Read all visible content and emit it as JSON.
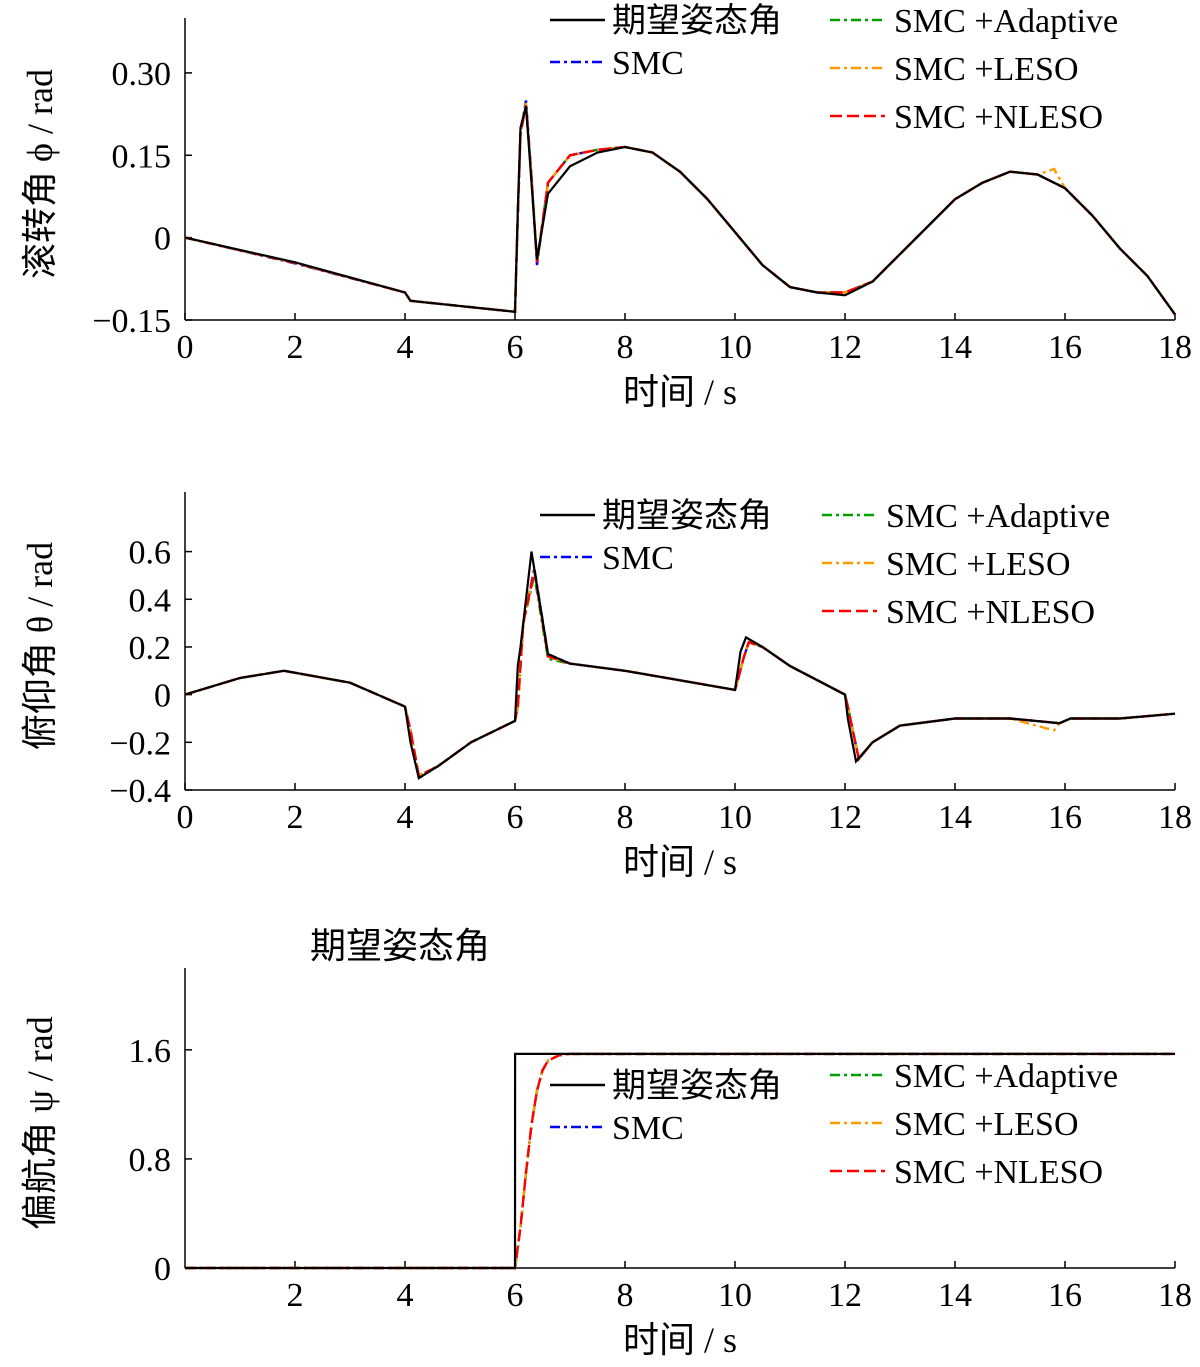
{
  "legend": {
    "entries": [
      "期望姿态角",
      "SMC",
      "SMC +Adaptive",
      "SMC +LESO",
      "SMC +NLESO"
    ]
  },
  "colors": {
    "desired": "#000000",
    "smc": "#0000ff",
    "adaptive": "#00a000",
    "leso": "#ff9900",
    "nleso": "#ff0000"
  },
  "chart_data": [
    {
      "type": "line",
      "ylabel": "滚转角 ϕ / rad",
      "xlabel": "时间 / s",
      "xlim": [
        0,
        18
      ],
      "ylim": [
        -0.15,
        0.4
      ],
      "xticks": [
        "0",
        "2",
        "4",
        "6",
        "8",
        "10",
        "12",
        "14",
        "16",
        "18"
      ],
      "yticks": [
        "−0.15",
        "0",
        "0.15",
        "0.30"
      ],
      "ytick_values": [
        -0.15,
        0,
        0.15,
        0.3
      ],
      "extra_title": "",
      "series": [
        {
          "name": "期望姿态角",
          "x": [
            0,
            2,
            4,
            4.1,
            6,
            6.05,
            6.1,
            6.2,
            6.3,
            6.4,
            6.6,
            7,
            7.5,
            8,
            8.5,
            9,
            9.5,
            10,
            10.5,
            11,
            11.5,
            12,
            12.5,
            13,
            13.5,
            14,
            14.5,
            15,
            15.5,
            16,
            16.5,
            17,
            17.5,
            18
          ],
          "y": [
            0,
            -0.045,
            -0.1,
            -0.115,
            -0.135,
            0.05,
            0.2,
            0.24,
            0.1,
            -0.04,
            0.08,
            0.13,
            0.155,
            0.165,
            0.155,
            0.12,
            0.07,
            0.01,
            -0.05,
            -0.09,
            -0.1,
            -0.105,
            -0.08,
            -0.03,
            0.02,
            0.07,
            0.1,
            0.12,
            0.115,
            0.09,
            0.04,
            -0.02,
            -0.07,
            -0.14
          ]
        },
        {
          "name": "SMC",
          "x": [
            0,
            2,
            4,
            4.1,
            6,
            6.05,
            6.1,
            6.2,
            6.3,
            6.4,
            6.6,
            7,
            7.5,
            8,
            8.5,
            9,
            9.5,
            10,
            10.5,
            11,
            11.5,
            12,
            12.5,
            13,
            13.5,
            14,
            14.5,
            15,
            15.5,
            16,
            16.5,
            17,
            17.5,
            18
          ],
          "y": [
            0,
            -0.047,
            -0.1,
            -0.115,
            -0.135,
            0.04,
            0.19,
            0.25,
            0.11,
            -0.05,
            0.1,
            0.15,
            0.16,
            0.165,
            0.155,
            0.12,
            0.07,
            0.01,
            -0.05,
            -0.09,
            -0.1,
            -0.1,
            -0.08,
            -0.03,
            0.02,
            0.07,
            0.1,
            0.12,
            0.115,
            0.09,
            0.04,
            -0.02,
            -0.07,
            -0.14
          ]
        },
        {
          "name": "SMC +Adaptive",
          "x": [
            0,
            2,
            4,
            4.1,
            6,
            6.05,
            6.1,
            6.2,
            6.3,
            6.4,
            6.6,
            7,
            7.5,
            8,
            8.5,
            9,
            9.5,
            10,
            10.5,
            11,
            11.5,
            12,
            12.5,
            13,
            13.5,
            14,
            14.5,
            15,
            15.5,
            16,
            16.5,
            17,
            17.5,
            18
          ],
          "y": [
            0,
            -0.046,
            -0.1,
            -0.115,
            -0.135,
            0.04,
            0.19,
            0.24,
            0.11,
            -0.045,
            0.1,
            0.15,
            0.16,
            0.165,
            0.155,
            0.12,
            0.07,
            0.01,
            -0.05,
            -0.09,
            -0.1,
            -0.1,
            -0.08,
            -0.03,
            0.02,
            0.07,
            0.1,
            0.12,
            0.115,
            0.09,
            0.04,
            -0.02,
            -0.07,
            -0.14
          ]
        },
        {
          "name": "SMC +LESO",
          "x": [
            0,
            2,
            4,
            4.1,
            6,
            6.05,
            6.1,
            6.2,
            6.3,
            6.4,
            6.6,
            7,
            7.5,
            8,
            8.5,
            9,
            9.5,
            10,
            10.5,
            11,
            11.5,
            12,
            12.5,
            13,
            13.5,
            14,
            14.5,
            15,
            15.5,
            15.8,
            16,
            16.5,
            17,
            17.5,
            18
          ],
          "y": [
            0,
            -0.046,
            -0.1,
            -0.115,
            -0.135,
            0.04,
            0.19,
            0.245,
            0.11,
            -0.045,
            0.1,
            0.15,
            0.16,
            0.165,
            0.155,
            0.12,
            0.07,
            0.01,
            -0.05,
            -0.09,
            -0.1,
            -0.1,
            -0.08,
            -0.03,
            0.02,
            0.07,
            0.1,
            0.12,
            0.115,
            0.125,
            0.09,
            0.04,
            -0.02,
            -0.07,
            -0.14
          ]
        },
        {
          "name": "SMC +NLESO",
          "x": [
            0,
            2,
            4,
            4.1,
            6,
            6.05,
            6.1,
            6.2,
            6.3,
            6.4,
            6.6,
            7,
            7.5,
            8,
            8.5,
            9,
            9.5,
            10,
            10.5,
            11,
            11.5,
            12,
            12.5,
            13,
            13.5,
            14,
            14.5,
            15,
            15.5,
            16,
            16.5,
            17,
            17.5,
            18
          ],
          "y": [
            0,
            -0.046,
            -0.1,
            -0.115,
            -0.135,
            0.04,
            0.19,
            0.24,
            0.11,
            -0.045,
            0.1,
            0.15,
            0.16,
            0.165,
            0.155,
            0.12,
            0.07,
            0.01,
            -0.05,
            -0.09,
            -0.1,
            -0.1,
            -0.08,
            -0.03,
            0.02,
            0.07,
            0.1,
            0.12,
            0.115,
            0.09,
            0.04,
            -0.02,
            -0.07,
            -0.14
          ]
        }
      ]
    },
    {
      "type": "line",
      "ylabel": "俯仰角 θ / rad",
      "xlabel": "时间 / s",
      "xlim": [
        0,
        18
      ],
      "ylim": [
        -0.4,
        0.85
      ],
      "xticks": [
        "0",
        "2",
        "4",
        "6",
        "8",
        "10",
        "12",
        "14",
        "16",
        "18"
      ],
      "yticks": [
        "−0.4",
        "−0.2",
        "0",
        "0.2",
        "0.4",
        "0.6"
      ],
      "ytick_values": [
        -0.4,
        -0.2,
        0,
        0.2,
        0.4,
        0.6
      ],
      "extra_title": "",
      "series": [
        {
          "name": "期望姿态角",
          "x": [
            0,
            1,
            1.8,
            3,
            4,
            4.1,
            4.25,
            4.6,
            5.2,
            6,
            6.05,
            6.1,
            6.3,
            6.6,
            7,
            8,
            9,
            10,
            10.05,
            10.1,
            10.2,
            10.5,
            11,
            12,
            12.05,
            12.2,
            12.5,
            13,
            14,
            15,
            15.9,
            16.1,
            17,
            18
          ],
          "y": [
            0,
            0.07,
            0.1,
            0.05,
            -0.05,
            -0.2,
            -0.35,
            -0.3,
            -0.2,
            -0.11,
            0.12,
            0.2,
            0.6,
            0.17,
            0.13,
            0.1,
            0.06,
            0.02,
            0.1,
            0.18,
            0.24,
            0.2,
            0.12,
            0.0,
            -0.1,
            -0.28,
            -0.2,
            -0.13,
            -0.1,
            -0.1,
            -0.12,
            -0.1,
            -0.1,
            -0.08
          ]
        },
        {
          "name": "SMC",
          "x": [
            0,
            1,
            1.8,
            3,
            4,
            4.1,
            4.25,
            4.6,
            5.2,
            6,
            6.05,
            6.15,
            6.35,
            6.6,
            7,
            8,
            9,
            10,
            10.05,
            10.15,
            10.25,
            10.5,
            11,
            12,
            12.05,
            12.25,
            12.5,
            13,
            14,
            15,
            15.9,
            16.1,
            17,
            18
          ],
          "y": [
            0,
            0.07,
            0.1,
            0.05,
            -0.05,
            -0.15,
            -0.34,
            -0.3,
            -0.2,
            -0.11,
            -0.05,
            0.3,
            0.53,
            0.17,
            0.13,
            0.1,
            0.06,
            0.02,
            0.06,
            0.15,
            0.22,
            0.2,
            0.12,
            0.0,
            -0.05,
            -0.27,
            -0.2,
            -0.13,
            -0.1,
            -0.1,
            -0.12,
            -0.1,
            -0.1,
            -0.08
          ]
        },
        {
          "name": "SMC +Adaptive",
          "x": [
            0,
            1,
            1.8,
            3,
            4,
            4.1,
            4.25,
            4.6,
            5.2,
            6,
            6.05,
            6.15,
            6.35,
            6.6,
            7,
            8,
            9,
            10,
            10.05,
            10.15,
            10.25,
            10.5,
            11,
            12,
            12.05,
            12.25,
            12.5,
            13,
            14,
            15,
            15.9,
            16.1,
            17,
            18
          ],
          "y": [
            0,
            0.07,
            0.1,
            0.05,
            -0.05,
            -0.15,
            -0.34,
            -0.3,
            -0.2,
            -0.11,
            -0.05,
            0.3,
            0.5,
            0.15,
            0.13,
            0.1,
            0.06,
            0.02,
            0.06,
            0.15,
            0.22,
            0.2,
            0.12,
            0.0,
            -0.05,
            -0.27,
            -0.2,
            -0.13,
            -0.1,
            -0.1,
            -0.12,
            -0.1,
            -0.1,
            -0.08
          ]
        },
        {
          "name": "SMC +LESO",
          "x": [
            0,
            1,
            1.8,
            3,
            4,
            4.1,
            4.25,
            4.6,
            5.2,
            6,
            6.05,
            6.15,
            6.35,
            6.6,
            7,
            8,
            9,
            10,
            10.05,
            10.15,
            10.25,
            10.5,
            11,
            12,
            12.05,
            12.25,
            12.5,
            13,
            14,
            15,
            15.8,
            15.9,
            16.1,
            17,
            18
          ],
          "y": [
            0,
            0.07,
            0.1,
            0.05,
            -0.05,
            -0.15,
            -0.34,
            -0.3,
            -0.2,
            -0.11,
            -0.05,
            0.3,
            0.52,
            0.16,
            0.13,
            0.1,
            0.06,
            0.02,
            0.06,
            0.15,
            0.22,
            0.2,
            0.12,
            0.0,
            -0.05,
            -0.27,
            -0.2,
            -0.13,
            -0.1,
            -0.1,
            -0.15,
            -0.12,
            -0.1,
            -0.1,
            -0.08
          ]
        },
        {
          "name": "SMC +NLESO",
          "x": [
            0,
            1,
            1.8,
            3,
            4,
            4.1,
            4.25,
            4.6,
            5.2,
            6,
            6.05,
            6.15,
            6.35,
            6.6,
            7,
            8,
            9,
            10,
            10.05,
            10.15,
            10.25,
            10.5,
            11,
            12,
            12.05,
            12.25,
            12.5,
            13,
            14,
            15,
            15.9,
            16.1,
            17,
            18
          ],
          "y": [
            0,
            0.07,
            0.1,
            0.05,
            -0.05,
            -0.15,
            -0.34,
            -0.3,
            -0.2,
            -0.11,
            -0.05,
            0.3,
            0.52,
            0.16,
            0.13,
            0.1,
            0.06,
            0.02,
            0.06,
            0.15,
            0.22,
            0.2,
            0.12,
            0.0,
            -0.05,
            -0.27,
            -0.2,
            -0.13,
            -0.1,
            -0.1,
            -0.12,
            -0.1,
            -0.1,
            -0.08
          ]
        }
      ]
    },
    {
      "type": "line",
      "ylabel": "偏航角 ψ / rad",
      "xlabel": "时间 / s",
      "xlim": [
        0,
        18
      ],
      "ylim": [
        0,
        2.2
      ],
      "xticks": [
        "2",
        "4",
        "6",
        "8",
        "10",
        "12",
        "14",
        "16",
        "18"
      ],
      "xtick_values": [
        2,
        4,
        6,
        8,
        10,
        12,
        14,
        16,
        18
      ],
      "yticks": [
        "0",
        "0.8",
        "1.6"
      ],
      "ytick_values": [
        0,
        0.8,
        1.6
      ],
      "extra_title": "期望姿态角",
      "series": [
        {
          "name": "期望姿态角",
          "x": [
            0,
            6,
            6.001,
            18
          ],
          "y": [
            0,
            0,
            1.57,
            1.57
          ]
        },
        {
          "name": "SMC",
          "x": [
            0,
            6,
            6.1,
            6.2,
            6.3,
            6.4,
            6.5,
            6.6,
            6.8,
            7,
            7.5,
            18
          ],
          "y": [
            0,
            0,
            0.3,
            0.7,
            1.05,
            1.3,
            1.45,
            1.52,
            1.56,
            1.57,
            1.57,
            1.57
          ]
        },
        {
          "name": "SMC +Adaptive",
          "x": [
            0,
            6,
            6.1,
            6.2,
            6.3,
            6.4,
            6.5,
            6.6,
            6.8,
            7,
            7.5,
            18
          ],
          "y": [
            0,
            0,
            0.3,
            0.7,
            1.05,
            1.3,
            1.45,
            1.52,
            1.56,
            1.57,
            1.57,
            1.57
          ]
        },
        {
          "name": "SMC +LESO",
          "x": [
            0,
            6,
            6.1,
            6.2,
            6.3,
            6.4,
            6.5,
            6.6,
            6.8,
            7,
            7.5,
            18
          ],
          "y": [
            0,
            0,
            0.3,
            0.7,
            1.05,
            1.3,
            1.45,
            1.52,
            1.56,
            1.57,
            1.57,
            1.57
          ]
        },
        {
          "name": "SMC +NLESO",
          "x": [
            0,
            6,
            6.1,
            6.2,
            6.3,
            6.4,
            6.5,
            6.6,
            6.8,
            7,
            7.5,
            18
          ],
          "y": [
            0,
            0,
            0.3,
            0.7,
            1.05,
            1.3,
            1.45,
            1.52,
            1.56,
            1.57,
            1.57,
            1.57
          ]
        }
      ]
    }
  ]
}
